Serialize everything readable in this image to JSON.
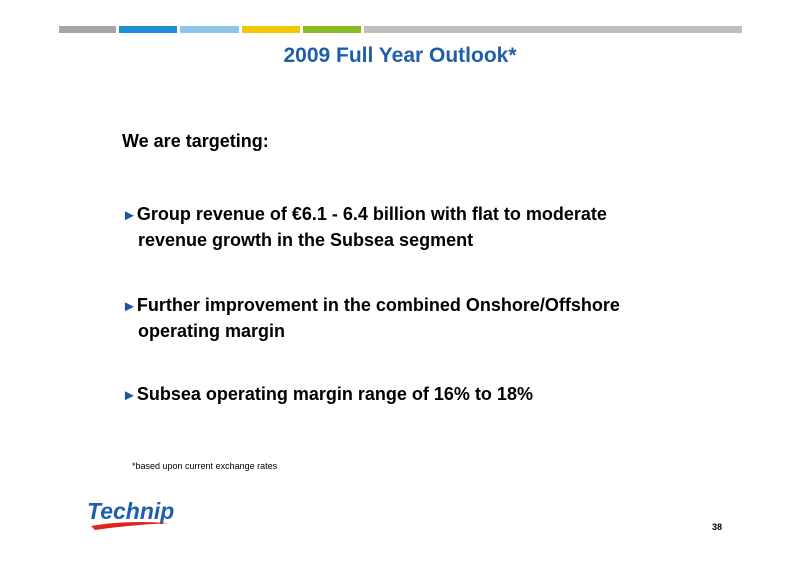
{
  "colors": {
    "title": "#1f5fa8",
    "bullet_marker": "#1a56a8",
    "logo_blue": "#1d5fae",
    "logo_red": "#e2231a",
    "top_bar": [
      "#a6a6a6",
      "#1e90d6",
      "#8ec5ea",
      "#f2c800",
      "#86bc25",
      "#bfbfbf"
    ]
  },
  "slide": {
    "title": "2009 Full Year Outlook*",
    "intro": "We are targeting:",
    "bullet_marker": "►",
    "bullets": [
      {
        "line1": "Group revenue of €6.1 - 6.4 billion with flat to moderate",
        "line2": "revenue growth in the Subsea segment"
      },
      {
        "line1": "Further improvement in the combined Onshore/Offshore",
        "line2": "operating margin"
      },
      {
        "line1": "Subsea operating margin range of 16% to 18%",
        "line2": ""
      }
    ],
    "footnote": "*based upon current exchange rates",
    "page_number": "38"
  },
  "logo": {
    "text": "Technip"
  }
}
